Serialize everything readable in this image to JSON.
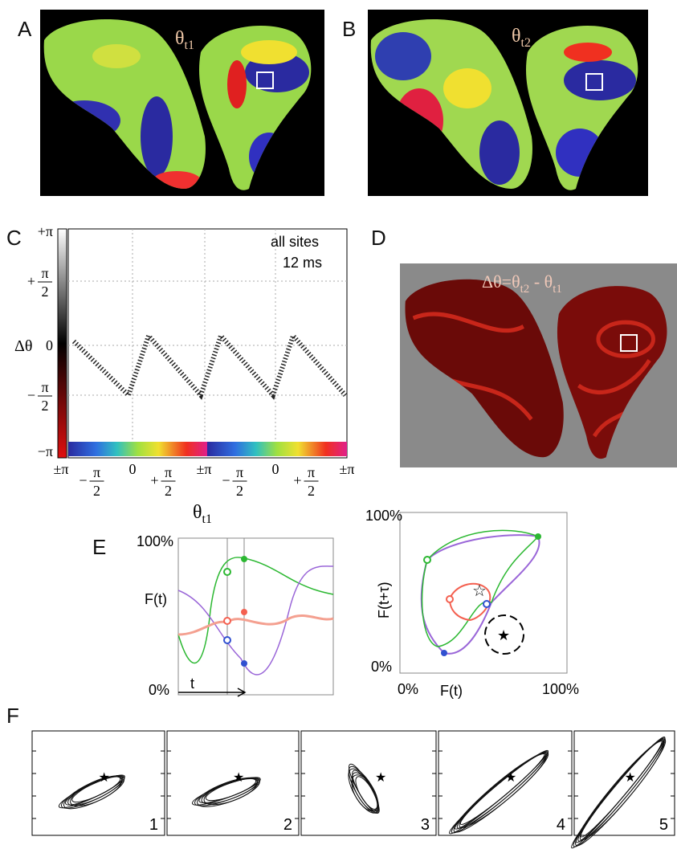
{
  "panel_a": {
    "label": "A",
    "title": {
      "base": "θ",
      "sub": "t1"
    }
  },
  "panel_b": {
    "label": "B",
    "title": {
      "base": "θ",
      "sub": "t2"
    }
  },
  "panel_c": {
    "label": "C",
    "y_label": "Δθ",
    "y_ticks": [
      "+π",
      {
        "sign": "+",
        "num": "π",
        "den": "2"
      },
      "0",
      {
        "sign": "−",
        "num": "π",
        "den": "2"
      },
      "−π"
    ],
    "x_ticks": [
      "±π",
      {
        "sign": "−",
        "num": "π",
        "den": "2"
      },
      "0",
      {
        "sign": "+",
        "num": "π",
        "den": "2"
      },
      "±π",
      {
        "sign": "−",
        "num": "π",
        "den": "2"
      },
      "0",
      {
        "sign": "+",
        "num": "π",
        "den": "2"
      },
      "±π"
    ],
    "x_label": {
      "base": "θ",
      "sub": "t1"
    },
    "annotations": [
      "all sites",
      "12 ms"
    ]
  },
  "panel_d": {
    "label": "D",
    "title": {
      "lhs": "Δθ=θ",
      "sub1": "t2",
      "op": " - θ",
      "sub2": "t1"
    }
  },
  "panel_e": {
    "label": "E",
    "left": {
      "y_top": "100%",
      "y_label": "F(t)",
      "y_bottom": "0%",
      "x_label": "t"
    },
    "right": {
      "y_top": "100%",
      "y_label": "F(t+τ)",
      "y_bottom": "0%",
      "x_left": "0%",
      "x_label": "F(t)",
      "x_right": "100%"
    }
  },
  "panel_f": {
    "label": "F",
    "numbers": [
      "1",
      "2",
      "3",
      "4",
      "5"
    ]
  }
}
